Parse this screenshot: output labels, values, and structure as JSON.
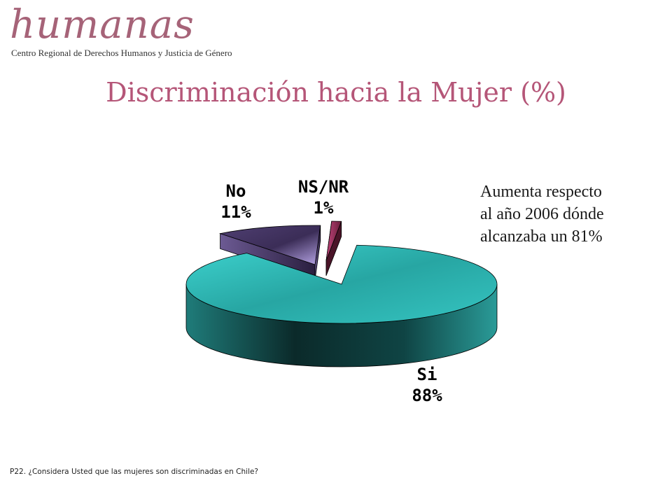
{
  "logo": {
    "word": "humanas",
    "subtitle": "Centro Regional de Derechos Humanos y Justicia de Género"
  },
  "title": "Discriminación hacia la Mujer (%)",
  "note": [
    "Aumenta respecto",
    "al año 2006 dónde",
    "alcanzaba un 81%"
  ],
  "footnote": "P22. ¿Considera Usted que las mujeres son discriminadas en Chile?",
  "colors": {
    "title": "#b55678",
    "logo": "#a66378",
    "si": "#2fbfbd",
    "no": "#8b73b5",
    "nsnr": "#8b2a4f"
  },
  "chart_data": {
    "type": "pie",
    "style": "3d-exploded",
    "slices": [
      {
        "name": "Si",
        "value": 88,
        "label": "88%"
      },
      {
        "name": "No",
        "value": 11,
        "label": "11%"
      },
      {
        "name": "NS/NR",
        "value": 1,
        "label": "1%"
      }
    ]
  }
}
